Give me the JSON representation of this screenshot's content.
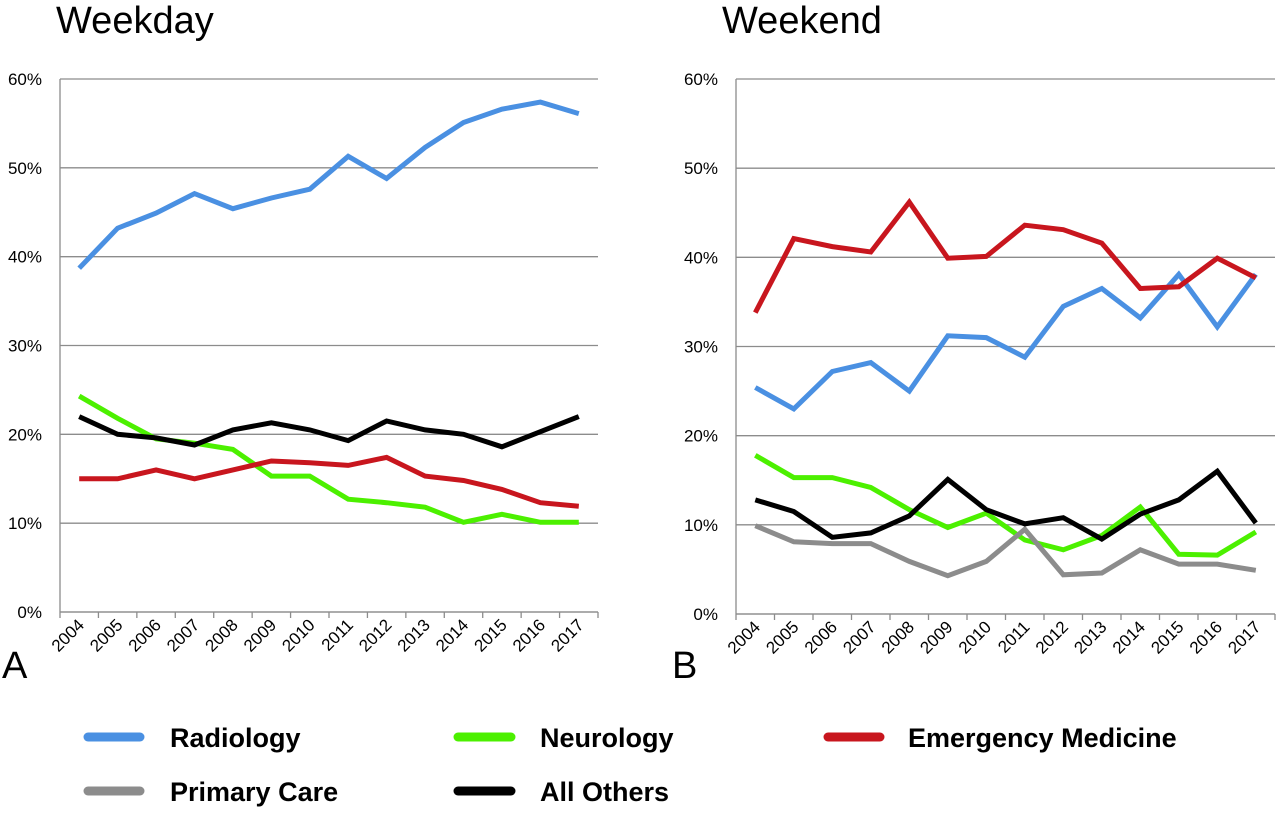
{
  "chart_data": [
    {
      "type": "line",
      "panel": "A",
      "title": "Weekday",
      "xlabel": "",
      "ylabel": "",
      "categories": [
        "2004",
        "2005",
        "2006",
        "2007",
        "2008",
        "2009",
        "2010",
        "2011",
        "2012",
        "2013",
        "2014",
        "2015",
        "2016",
        "2017"
      ],
      "ylim": [
        0,
        60
      ],
      "yticks": [
        "0%",
        "10%",
        "20%",
        "30%",
        "40%",
        "50%",
        "60%"
      ],
      "grid": true,
      "series": [
        {
          "name": "Radiology",
          "color": "#4A90E2",
          "values": [
            38.7,
            43.2,
            44.9,
            47.1,
            45.4,
            46.6,
            47.6,
            51.3,
            48.8,
            52.3,
            55.1,
            56.6,
            57.4,
            56.1
          ]
        },
        {
          "name": "Neurology",
          "color": "#4CF000",
          "values": [
            24.3,
            21.8,
            19.5,
            19.0,
            18.3,
            15.3,
            15.3,
            12.7,
            12.3,
            11.8,
            10.1,
            11.0,
            10.1,
            10.1
          ]
        },
        {
          "name": "Emergency Medicine",
          "color": "#C8161E",
          "values": [
            15.0,
            15.0,
            16.0,
            15.0,
            16.0,
            17.0,
            16.8,
            16.5,
            17.4,
            15.3,
            14.8,
            13.8,
            12.3,
            11.9
          ]
        },
        {
          "name": "All Others",
          "color": "#000000",
          "values": [
            22.0,
            20.0,
            19.6,
            18.8,
            20.5,
            21.3,
            20.5,
            19.3,
            21.5,
            20.5,
            20.0,
            18.6,
            20.3,
            22.0
          ]
        }
      ]
    },
    {
      "type": "line",
      "panel": "B",
      "title": "Weekend",
      "xlabel": "",
      "ylabel": "",
      "categories": [
        "2004",
        "2005",
        "2006",
        "2007",
        "2008",
        "2009",
        "2010",
        "2011",
        "2012",
        "2013",
        "2014",
        "2015",
        "2016",
        "2017"
      ],
      "ylim": [
        0,
        60
      ],
      "yticks": [
        "0%",
        "10%",
        "20%",
        "30%",
        "40%",
        "50%",
        "60%"
      ],
      "grid": true,
      "series": [
        {
          "name": "Radiology",
          "color": "#4A90E2",
          "values": [
            25.4,
            23.0,
            27.2,
            28.2,
            25.0,
            31.2,
            31.0,
            28.8,
            34.5,
            36.5,
            33.2,
            38.1,
            32.2,
            38.1
          ]
        },
        {
          "name": "Neurology",
          "color": "#4CF000",
          "values": [
            17.8,
            15.3,
            15.3,
            14.2,
            11.7,
            9.7,
            11.3,
            8.3,
            7.2,
            8.8,
            12.0,
            6.7,
            6.6,
            9.2
          ]
        },
        {
          "name": "Emergency Medicine",
          "color": "#C8161E",
          "values": [
            33.8,
            42.1,
            41.2,
            40.6,
            46.2,
            39.9,
            40.1,
            43.6,
            43.1,
            41.6,
            36.5,
            36.7,
            39.9,
            37.7
          ]
        },
        {
          "name": "Primary Care",
          "color": "#8C8C8C",
          "values": [
            9.9,
            8.1,
            7.9,
            7.9,
            5.9,
            4.3,
            5.9,
            9.5,
            4.4,
            4.6,
            7.2,
            5.6,
            5.6,
            4.9
          ]
        },
        {
          "name": "All Others",
          "color": "#000000",
          "values": [
            12.8,
            11.5,
            8.6,
            9.1,
            11.0,
            15.1,
            11.7,
            10.1,
            10.8,
            8.4,
            11.2,
            12.8,
            16.0,
            10.2
          ]
        }
      ]
    }
  ],
  "legend": {
    "items": [
      {
        "label": "Radiology",
        "color": "#4A90E2"
      },
      {
        "label": "Neurology",
        "color": "#4CF000"
      },
      {
        "label": "Emergency Medicine",
        "color": "#C8161E"
      },
      {
        "label": "Primary Care",
        "color": "#8C8C8C"
      },
      {
        "label": "All Others",
        "color": "#000000"
      }
    ]
  }
}
